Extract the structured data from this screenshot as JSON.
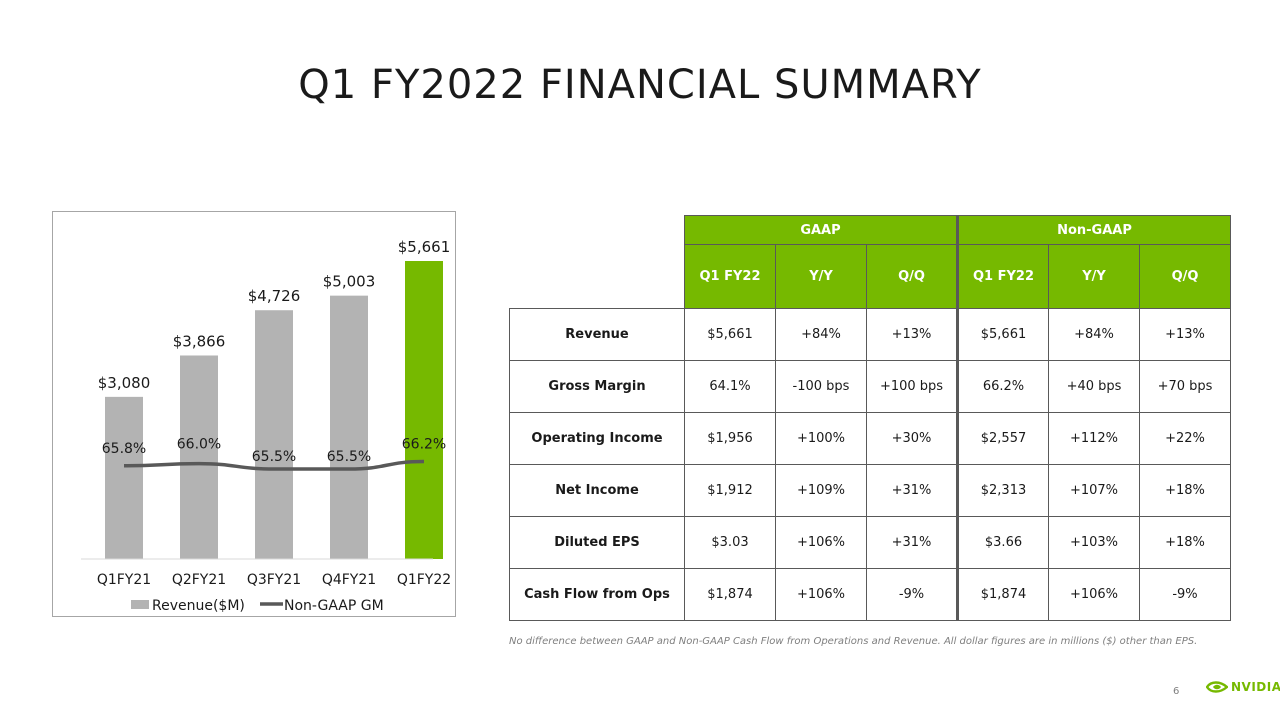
{
  "title": "Q1 FY2022 FINANCIAL SUMMARY",
  "colors": {
    "brand": "#76b900",
    "bar": "#b3b3b3",
    "line": "#595959"
  },
  "chart_data": {
    "type": "bar",
    "categories": [
      "Q1FY21",
      "Q2FY21",
      "Q3FY21",
      "Q4FY21",
      "Q1FY22"
    ],
    "series": [
      {
        "name": "Revenue($M)",
        "values": [
          3080,
          3866,
          4726,
          5003,
          5661
        ],
        "labels": [
          "$3,080",
          "$3,866",
          "$4,726",
          "$5,003",
          "$5,661"
        ]
      },
      {
        "name": "Non-GAAP GM",
        "type": "line",
        "values": [
          65.8,
          66.0,
          65.5,
          65.5,
          66.2
        ],
        "labels": [
          "65.8%",
          "66.0%",
          "65.5%",
          "65.5%",
          "66.2%"
        ]
      }
    ],
    "highlight_index": 4,
    "legend": [
      "Revenue($M)",
      "Non-GAAP GM"
    ],
    "legend_position": "bottom"
  },
  "table": {
    "group_headers": [
      "GAAP",
      "Non-GAAP"
    ],
    "columns": [
      "Q1 FY22",
      "Y/Y",
      "Q/Q",
      "Q1 FY22",
      "Y/Y",
      "Q/Q"
    ],
    "rows": [
      {
        "label": "Revenue",
        "cells": [
          "$5,661",
          "+84%",
          "+13%",
          "$5,661",
          "+84%",
          "+13%"
        ]
      },
      {
        "label": "Gross Margin",
        "cells": [
          "64.1%",
          "-100 bps",
          "+100 bps",
          "66.2%",
          "+40 bps",
          "+70 bps"
        ]
      },
      {
        "label": "Operating Income",
        "cells": [
          "$1,956",
          "+100%",
          "+30%",
          "$2,557",
          "+112%",
          "+22%"
        ]
      },
      {
        "label": "Net Income",
        "cells": [
          "$1,912",
          "+109%",
          "+31%",
          "$2,313",
          "+107%",
          "+18%"
        ]
      },
      {
        "label": "Diluted EPS",
        "cells": [
          "$3.03",
          "+106%",
          "+31%",
          "$3.66",
          "+103%",
          "+18%"
        ]
      },
      {
        "label": "Cash Flow from Ops",
        "cells": [
          "$1,874",
          "+106%",
          "-9%",
          "$1,874",
          "+106%",
          "-9%"
        ]
      }
    ]
  },
  "footnote": "No difference between GAAP and Non-GAAP Cash Flow from Operations and Revenue.  All dollar figures are in millions ($) other than EPS.",
  "page_number": "6",
  "logo_text": "NVIDIA"
}
